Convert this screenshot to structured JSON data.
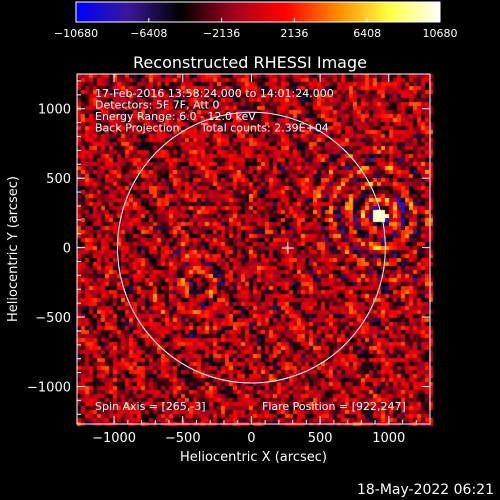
{
  "chart_data": {
    "type": "heatmap",
    "title": "Reconstructed RHESSI Image",
    "xlabel": "Heliocentric X (arcsec)",
    "ylabel": "Heliocentric Y (arcsec)",
    "xlim": [
      -1270,
      1300
    ],
    "ylim": [
      -1270,
      1250
    ],
    "xticks": [
      -1000,
      -500,
      0,
      500,
      1000
    ],
    "yticks": [
      1000,
      500,
      0,
      -500,
      -1000
    ],
    "xtick_labels": [
      "−1000",
      "−500",
      "0",
      "500",
      "1000"
    ],
    "ytick_labels": [
      "1000",
      "500",
      "0",
      "−500",
      "−1000"
    ],
    "colorbar": {
      "range": [
        -10680,
        10680
      ],
      "ticks": [
        -10680,
        -6408,
        -2136,
        2136,
        6408,
        10680
      ],
      "tick_labels": [
        "−10680",
        "−6408",
        "−2136",
        "2136",
        "6408",
        "10680"
      ],
      "colors": [
        "#0000ff",
        "#3a1a9a",
        "#000000",
        "#a00020",
        "#ff0000",
        "#ff8800",
        "#ffff40",
        "#ffffff"
      ]
    },
    "annotations": [
      "17-Feb-2016 13:58:24.000 to 14:01:24.000",
      "Detectors: 5F 7F, Att 0",
      "Energy Range: 6.0 - 12.0 keV",
      "Back Projection",
      "Total counts: 2.39E+04"
    ],
    "spin_axis_label": "Spin Axis = [265,-3]",
    "flare_position_label": "Flare Position = [922,247]",
    "spin_axis": [
      265,
      -3
    ],
    "flare_position": [
      922,
      247
    ],
    "secondary_source": [
      -400,
      -250
    ],
    "solar_limb_radius": 975
  },
  "footer": {
    "date": "18-May-2022 06:21"
  }
}
